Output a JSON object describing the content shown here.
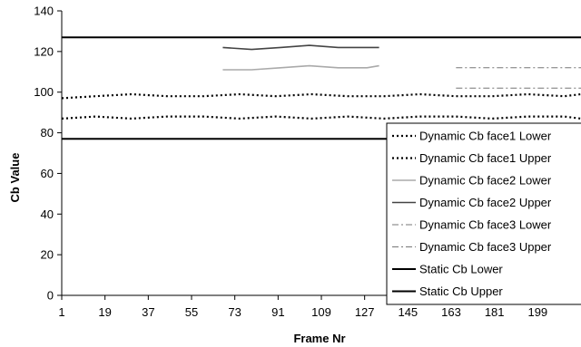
{
  "chart_data": {
    "type": "line",
    "title": "",
    "xlabel": "Frame Nr",
    "ylabel": "Cb Value",
    "ylim": [
      0,
      140
    ],
    "xlim": [
      1,
      217
    ],
    "y_ticks": [
      "0",
      "20",
      "40",
      "60",
      "80",
      "100",
      "120",
      "140"
    ],
    "x_ticks": [
      "1",
      "19",
      "37",
      "55",
      "73",
      "91",
      "109",
      "127",
      "145",
      "163",
      "181",
      "199"
    ],
    "grid": false,
    "legend_position": "bottom-right",
    "series": [
      {
        "name": "Dynamic Cb face1 Lower",
        "color": "#000000",
        "style": "dotted",
        "x": [
          1,
          15,
          30,
          45,
          60,
          75,
          90,
          105,
          120,
          135,
          150,
          165,
          180,
          195,
          210,
          217
        ],
        "y": [
          87,
          88,
          87,
          88,
          88,
          87,
          88,
          87,
          88,
          87,
          88,
          88,
          87,
          88,
          88,
          87
        ]
      },
      {
        "name": "Dynamic Cb face1 Upper",
        "color": "#000000",
        "style": "dotted",
        "x": [
          1,
          15,
          30,
          45,
          60,
          75,
          90,
          105,
          120,
          135,
          150,
          165,
          180,
          195,
          210,
          217
        ],
        "y": [
          97,
          98,
          99,
          98,
          98,
          99,
          98,
          99,
          98,
          98,
          99,
          98,
          98,
          99,
          98,
          99
        ]
      },
      {
        "name": "Dynamic Cb face2 Lower",
        "color": "#aaaaaa",
        "style": "solid",
        "x": [
          68,
          80,
          92,
          104,
          116,
          128,
          133
        ],
        "y": [
          111,
          111,
          112,
          113,
          112,
          112,
          113
        ]
      },
      {
        "name": "Dynamic Cb face2 Upper",
        "color": "#444444",
        "style": "solid",
        "x": [
          68,
          80,
          92,
          104,
          116,
          128,
          133
        ],
        "y": [
          122,
          121,
          122,
          123,
          122,
          122,
          122
        ]
      },
      {
        "name": "Dynamic Cb face3 Lower",
        "color": "#777777",
        "style": "dashdot",
        "x": [
          165,
          180,
          195,
          210,
          217
        ],
        "y": [
          102,
          102,
          102,
          102,
          102
        ]
      },
      {
        "name": "Dynamic Cb face3 Upper",
        "color": "#777777",
        "style": "dashdot",
        "x": [
          165,
          180,
          195,
          210,
          217
        ],
        "y": [
          112,
          112,
          112,
          112,
          112
        ]
      },
      {
        "name": "Static Cb Lower",
        "color": "#000000",
        "style": "solid-thick",
        "x": [
          1,
          217
        ],
        "y": [
          77,
          77
        ]
      },
      {
        "name": "Static Cb Upper",
        "color": "#000000",
        "style": "solid-thick",
        "x": [
          1,
          217
        ],
        "y": [
          127,
          127
        ]
      }
    ]
  }
}
